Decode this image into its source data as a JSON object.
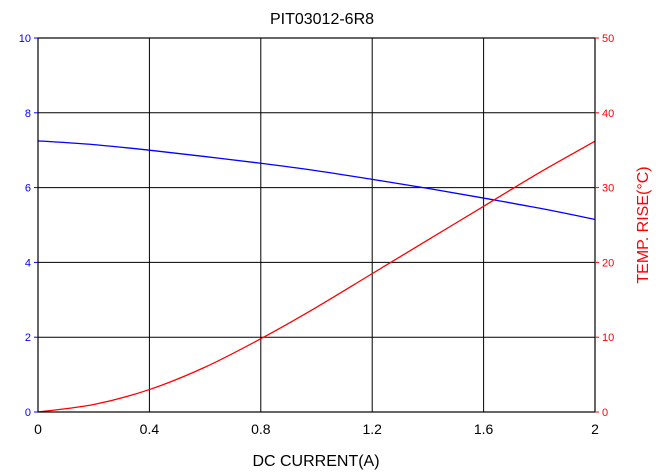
{
  "chart_data": {
    "type": "line",
    "title": "PIT03012-6R8",
    "xlabel": "DC CURRENT(A)",
    "ylabel_left": "",
    "ylabel_right": "TEMP. RISE(°C)",
    "xlim": [
      0,
      2
    ],
    "ylim_left": [
      0,
      10
    ],
    "ylim_right": [
      0,
      50
    ],
    "x_ticks": [
      "0",
      "0.4",
      "0.8",
      "1.2",
      "1.6",
      "2"
    ],
    "y_ticks_left": [
      "0",
      "2",
      "4",
      "6",
      "8",
      "10"
    ],
    "y_ticks_right": [
      "0",
      "10",
      "20",
      "30",
      "40",
      "50"
    ],
    "grid": true,
    "series": [
      {
        "axis": "left",
        "color": "#0000ff",
        "x": [
          0,
          0.2,
          0.4,
          0.6,
          0.8,
          1.0,
          1.2,
          1.4,
          1.6,
          1.8,
          2.0
        ],
        "y": [
          7.25,
          7.15,
          7.0,
          6.83,
          6.65,
          6.45,
          6.22,
          5.98,
          5.72,
          5.45,
          5.15
        ]
      },
      {
        "axis": "right",
        "color": "#ff0000",
        "x": [
          0,
          0.2,
          0.4,
          0.6,
          0.8,
          1.0,
          1.2,
          1.4,
          1.6,
          1.8,
          2.0
        ],
        "y": [
          0,
          1.0,
          3.0,
          6.0,
          9.8,
          14.0,
          18.5,
          23.0,
          27.5,
          32.0,
          36.2
        ]
      }
    ]
  }
}
